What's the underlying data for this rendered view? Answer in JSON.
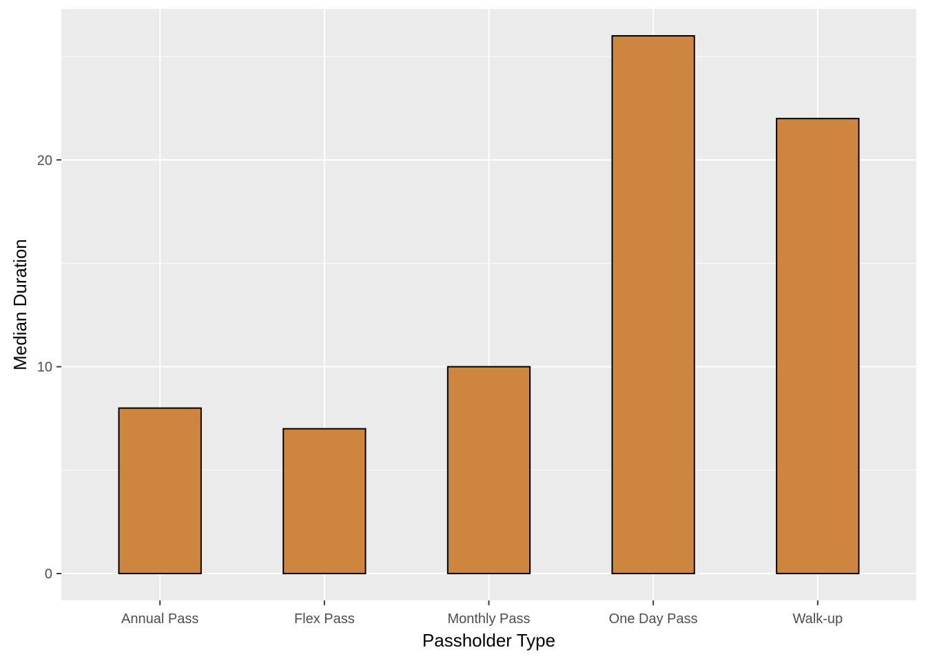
{
  "chart_data": {
    "type": "bar",
    "categories": [
      "Annual Pass",
      "Flex Pass",
      "Monthly Pass",
      "One Day Pass",
      "Walk-up"
    ],
    "values": [
      8,
      7,
      10,
      26,
      22
    ],
    "xlabel": "Passholder Type",
    "ylabel": "Median Duration",
    "ylim": [
      -1.3,
      27.3
    ],
    "yticks": [
      0,
      10,
      20
    ],
    "grid": true,
    "colors": {
      "panel": "#ebebeb",
      "grid": "#ffffff",
      "bar_fill": "#cd853f",
      "bar_stroke": "#000000",
      "tick": "#333333"
    }
  }
}
